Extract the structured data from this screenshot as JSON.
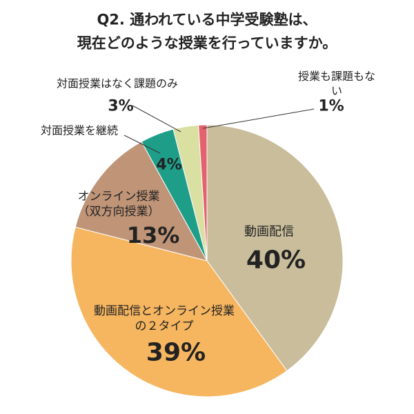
{
  "chart_data": {
    "type": "pie",
    "title": "Q2. 通われている中学受験塾は、\n現在どのような授業を行っていますか。",
    "categories": [
      "動画配信",
      "動画配信とオンライン授業\nの２タイプ",
      "オンライン授業\n（双方向授業）",
      "対面授業を継続",
      "対面授業はなく課題のみ",
      "授業も課題もない"
    ],
    "values": [
      40,
      39,
      13,
      4,
      3,
      1
    ],
    "value_labels": [
      "40%",
      "39%",
      "13%",
      "4%",
      "3%",
      "1%"
    ],
    "colors": [
      "#c9bd9b",
      "#f6b55f",
      "#bf9477",
      "#1e9e89",
      "#d9e0a2",
      "#e3626e"
    ]
  }
}
